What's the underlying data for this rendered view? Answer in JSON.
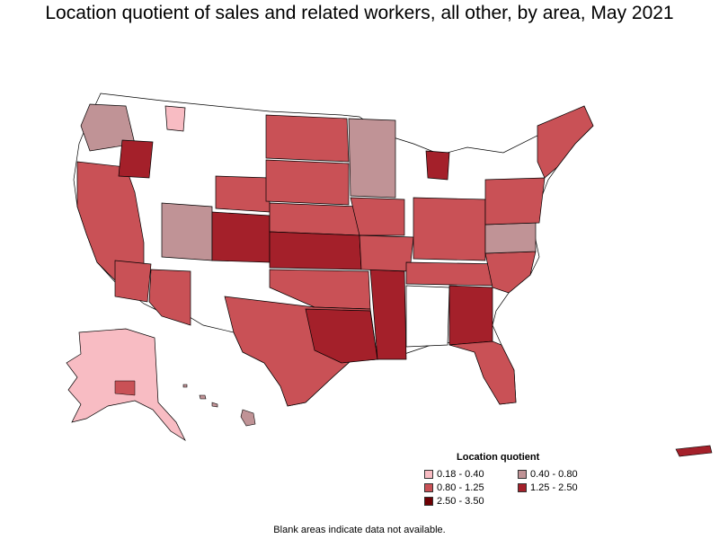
{
  "title": "Location quotient of sales and related workers, all other, by area, May 2021",
  "legend": {
    "title": "Location quotient",
    "items": [
      {
        "label": "0.18 - 0.40",
        "color": "#f8bcc3"
      },
      {
        "label": "0.40 - 0.80",
        "color": "#c09396"
      },
      {
        "label": "0.80 - 1.25",
        "color": "#c95156"
      },
      {
        "label": "1.25 - 2.50",
        "color": "#a4202a"
      },
      {
        "label": "2.50 - 3.50",
        "color": "#6e0004"
      }
    ]
  },
  "note": "Blank areas indicate data not available.",
  "colors": {
    "border": "#000000",
    "blank": "#ffffff"
  }
}
